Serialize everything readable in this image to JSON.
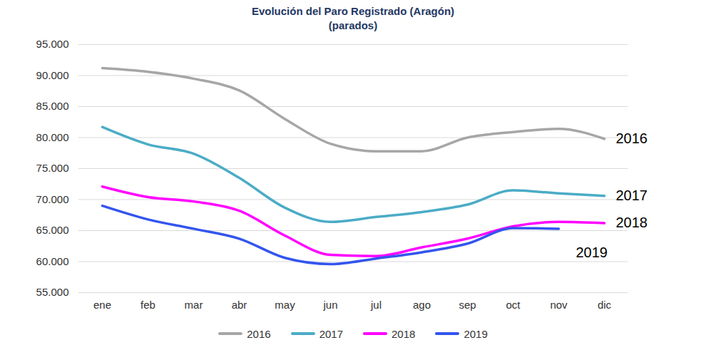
{
  "chart_data": {
    "type": "line",
    "title": "Evolución del Paro Registrado (Aragón)",
    "subtitle": "(parados)",
    "categories": [
      "ene",
      "feb",
      "mar",
      "abr",
      "may",
      "jun",
      "jul",
      "ago",
      "sep",
      "oct",
      "nov",
      "dic"
    ],
    "series": [
      {
        "name": "2016",
        "color": "#a6a6a6",
        "values": [
          91200,
          90600,
          89500,
          87600,
          83000,
          79000,
          77800,
          77800,
          80000,
          80900,
          81400,
          79800
        ]
      },
      {
        "name": "2017",
        "color": "#4bacc6",
        "values": [
          81700,
          78900,
          77400,
          73500,
          68700,
          66400,
          67200,
          68000,
          69200,
          71500,
          71000,
          70600
        ]
      },
      {
        "name": "2018",
        "color": "#ff00ff",
        "values": [
          72100,
          70400,
          69700,
          68200,
          64200,
          61100,
          60900,
          62300,
          63700,
          65700,
          66400,
          66200
        ]
      },
      {
        "name": "2019",
        "color": "#3355ee",
        "values": [
          69000,
          66800,
          65300,
          63700,
          60600,
          59600,
          60500,
          61500,
          62900,
          65400,
          65300,
          null
        ]
      }
    ],
    "ylim": [
      55000,
      95000
    ],
    "yticks": [
      {
        "value": 55000,
        "label": "55.000"
      },
      {
        "value": 60000,
        "label": "60.000"
      },
      {
        "value": 65000,
        "label": "65.000"
      },
      {
        "value": 70000,
        "label": "70.000"
      },
      {
        "value": 75000,
        "label": "75.000"
      },
      {
        "value": 80000,
        "label": "80.000"
      },
      {
        "value": 85000,
        "label": "85.000"
      },
      {
        "value": 90000,
        "label": "90.000"
      },
      {
        "value": 95000,
        "label": "95.000"
      }
    ],
    "grid": true,
    "legend": "bottom"
  }
}
